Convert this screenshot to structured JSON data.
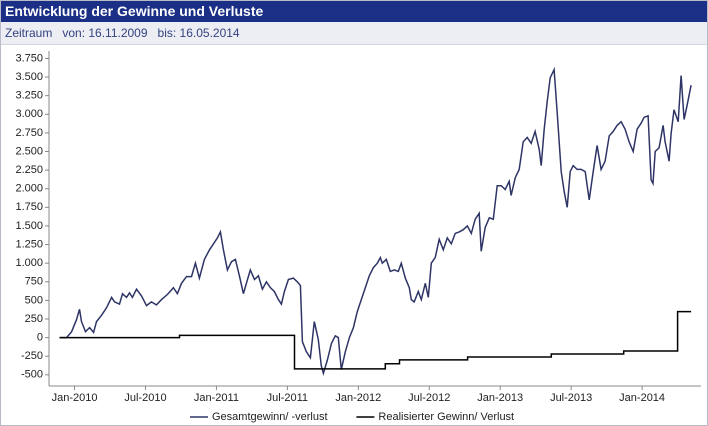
{
  "header": {
    "title": "Entwicklung der Gewinne und Verluste",
    "period_label": "Zeitraum",
    "from": "von: 16.11.2009",
    "to": "bis: 16.05.2014"
  },
  "chart_data": {
    "type": "line",
    "xlim": [
      2009.82,
      2014.415
    ],
    "xticks": [
      {
        "value": 2010.0,
        "label": "Jan-2010"
      },
      {
        "value": 2010.5,
        "label": "Jul-2010"
      },
      {
        "value": 2011.0,
        "label": "Jan-2011"
      },
      {
        "value": 2011.5,
        "label": "Jul-2011"
      },
      {
        "value": 2012.0,
        "label": "Jan-2012"
      },
      {
        "value": 2012.5,
        "label": "Jul-2012"
      },
      {
        "value": 2013.0,
        "label": "Jan-2013"
      },
      {
        "value": 2013.5,
        "label": "Jul-2013"
      },
      {
        "value": 2014.0,
        "label": "Jan-2014"
      }
    ],
    "ylim": [
      -650,
      3850
    ],
    "yticks": [
      -500,
      -250,
      0,
      250,
      500,
      750,
      {
        "value": 1000,
        "label": "1.000"
      },
      {
        "value": 1250,
        "label": "1.250"
      },
      {
        "value": 1500,
        "label": "1.500"
      },
      {
        "value": 1750,
        "label": "1.750"
      },
      {
        "value": 2000,
        "label": "2.000"
      },
      {
        "value": 2250,
        "label": "2.250"
      },
      {
        "value": 2500,
        "label": "2.500"
      },
      {
        "value": 2750,
        "label": "2.750"
      },
      {
        "value": 3000,
        "label": "3.000"
      },
      {
        "value": 3250,
        "label": "3.250"
      },
      {
        "value": 3500,
        "label": "3.500"
      },
      {
        "value": 3750,
        "label": "3.750"
      }
    ],
    "grid": false,
    "legend": "bottom",
    "series": [
      {
        "name": "Gesamtgewinn/ -verlust",
        "color": "#2e3566",
        "x": [
          2009.894,
          2009.944,
          2009.979,
          2010.014,
          2010.035,
          2010.049,
          2010.077,
          2010.106,
          2010.134,
          2010.155,
          2010.19,
          2010.225,
          2010.261,
          2010.282,
          2010.317,
          2010.338,
          2010.366,
          2010.387,
          2010.408,
          2010.437,
          2010.472,
          2010.507,
          2010.542,
          2010.577,
          2010.613,
          2010.655,
          2010.697,
          2010.725,
          2010.754,
          2010.789,
          2010.824,
          2010.852,
          2010.88,
          2010.915,
          2010.951,
          2010.979,
          2011.007,
          2011.028,
          2011.049,
          2011.077,
          2011.106,
          2011.134,
          2011.162,
          2011.19,
          2011.211,
          2011.239,
          2011.268,
          2011.296,
          2011.324,
          2011.352,
          2011.38,
          2011.408,
          2011.437,
          2011.458,
          2011.479,
          2011.507,
          2011.542,
          2011.57,
          2011.592,
          2011.606,
          2011.634,
          2011.662,
          2011.69,
          2011.718,
          2011.739,
          2011.754,
          2011.782,
          2011.81,
          2011.838,
          2011.859,
          2011.88,
          2011.908,
          2011.937,
          2011.965,
          2011.993,
          2012.021,
          2012.049,
          2012.077,
          2012.106,
          2012.134,
          2012.155,
          2012.169,
          2012.197,
          2012.225,
          2012.254,
          2012.282,
          2012.303,
          2012.331,
          2012.359,
          2012.373,
          2012.394,
          2012.423,
          2012.444,
          2012.472,
          2012.493,
          2012.514,
          2012.542,
          2012.57,
          2012.599,
          2012.627,
          2012.655,
          2012.683,
          2012.711,
          2012.739,
          2012.768,
          2012.796,
          2012.824,
          2012.852,
          2012.866,
          2012.894,
          2012.923,
          2012.951,
          2012.979,
          2013.007,
          2013.035,
          2013.063,
          2013.077,
          2013.106,
          2013.134,
          2013.162,
          2013.19,
          2013.218,
          2013.246,
          2013.275,
          2013.289,
          2013.31,
          2013.331,
          2013.352,
          2013.38,
          2013.401,
          2013.43,
          2013.451,
          2013.472,
          2013.493,
          2013.514,
          2013.542,
          2013.57,
          2013.599,
          2013.627,
          2013.655,
          2013.683,
          2013.711,
          2013.739,
          2013.768,
          2013.796,
          2013.824,
          2013.852,
          2013.88,
          2013.908,
          2013.937,
          2013.965,
          2013.993,
          2014.014,
          2014.042,
          2014.063,
          2014.077,
          2014.092,
          2014.12,
          2014.148,
          2014.162,
          2014.19,
          2014.204,
          2014.225,
          2014.254,
          2014.275,
          2014.296,
          2014.317,
          2014.345
        ],
        "values": [
          0,
          0,
          80,
          240,
          380,
          215,
          80,
          135,
          70,
          215,
          300,
          400,
          540,
          480,
          450,
          590,
          540,
          600,
          540,
          650,
          560,
          430,
          480,
          440,
          510,
          580,
          670,
          590,
          730,
          820,
          820,
          1000,
          800,
          1050,
          1180,
          1260,
          1340,
          1420,
          1180,
          910,
          1020,
          1050,
          830,
          590,
          730,
          910,
          780,
          830,
          650,
          750,
          670,
          620,
          510,
          450,
          620,
          780,
          800,
          750,
          700,
          -55,
          -190,
          -270,
          215,
          -25,
          -380,
          -480,
          -300,
          -80,
          25,
          0,
          -430,
          -190,
          0,
          135,
          350,
          510,
          670,
          830,
          940,
          1000,
          1075,
          1000,
          1050,
          890,
          910,
          890,
          1000,
          800,
          670,
          510,
          480,
          620,
          510,
          730,
          540,
          1000,
          1075,
          1320,
          1180,
          1340,
          1260,
          1400,
          1420,
          1450,
          1500,
          1400,
          1590,
          1670,
          1160,
          1480,
          1610,
          1590,
          2040,
          2040,
          1990,
          2100,
          1910,
          2150,
          2260,
          2630,
          2690,
          2610,
          2770,
          2530,
          2310,
          2800,
          3170,
          3490,
          3600,
          3040,
          2230,
          1960,
          1750,
          2230,
          2310,
          2260,
          2260,
          2230,
          1850,
          2230,
          2580,
          2260,
          2370,
          2710,
          2770,
          2850,
          2900,
          2800,
          2630,
          2500,
          2800,
          2880,
          2960,
          2980,
          2120,
          2070,
          2500,
          2550,
          2850,
          2630,
          2370,
          2740,
          3060,
          2900,
          3520,
          2930,
          3120,
          3390
        ]
      },
      {
        "name": "Realisierter Gewinn/ Verlust",
        "color": "#000000",
        "x": [
          2009.894,
          2010.74,
          2010.74,
          2011.55,
          2011.55,
          2012.19,
          2012.19,
          2012.29,
          2012.29,
          2012.77,
          2012.77,
          2013.36,
          2013.36,
          2013.87,
          2013.87,
          2014.25,
          2014.25,
          2014.345
        ],
        "values": [
          0,
          0,
          30,
          30,
          -420,
          -420,
          -350,
          -350,
          -300,
          -300,
          -260,
          -260,
          -220,
          -220,
          -180,
          -180,
          350,
          350
        ]
      }
    ]
  }
}
